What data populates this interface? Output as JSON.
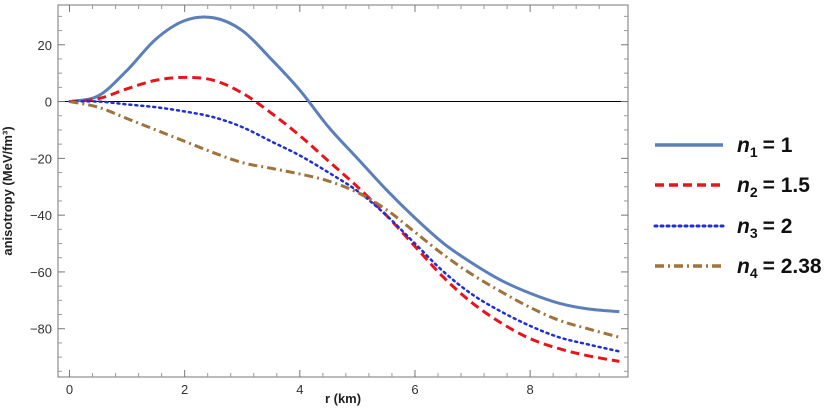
{
  "chart_data": {
    "type": "line",
    "title": "",
    "xlabel": "r (km)",
    "ylabel": "anisotropy (MeV/fm³)",
    "xlim": [
      -0.2,
      9.7
    ],
    "ylim": [
      -97,
      34
    ],
    "x_ticks": [
      0,
      2,
      4,
      6,
      8
    ],
    "y_ticks": [
      20,
      0,
      -20,
      -40,
      -60,
      -80
    ],
    "zero_line": true,
    "grid": false,
    "legend_position": "right",
    "x": [
      0,
      0.5,
      1,
      1.5,
      2,
      2.5,
      3,
      3.5,
      4,
      4.5,
      5,
      5.5,
      6,
      6.5,
      7,
      7.5,
      8,
      8.5,
      9,
      9.55
    ],
    "series": [
      {
        "name": "n1 = 1",
        "legend": {
          "var": "n",
          "sub": "1",
          "value": "= 1"
        },
        "color": "#5b7fba",
        "style": "solid",
        "values": [
          0,
          2,
          11,
          22,
          28.5,
          29.5,
          25,
          15,
          4,
          -9,
          -20,
          -31,
          -41,
          -50,
          -57,
          -63,
          -67.5,
          -71,
          -73,
          -74
        ]
      },
      {
        "name": "n2 = 1.5",
        "legend": {
          "var": "n",
          "sub": "2",
          "value": "= 1.5"
        },
        "color": "#e8141b",
        "style": "dashed",
        "values": [
          0,
          1,
          4.5,
          7.5,
          8.5,
          7.5,
          3,
          -4,
          -12,
          -21,
          -30,
          -40,
          -51,
          -62,
          -71,
          -78,
          -83.5,
          -87,
          -89.5,
          -91.5
        ]
      },
      {
        "name": "n3 = 2",
        "legend": {
          "var": "n",
          "sub": "3",
          "value": "= 2"
        },
        "color": "#1f2ed8",
        "style": "dotted",
        "values": [
          0,
          0,
          -1,
          -2,
          -3.5,
          -5.5,
          -9,
          -14,
          -19,
          -25,
          -31.5,
          -40,
          -50,
          -60,
          -68,
          -74,
          -79,
          -83,
          -85.5,
          -88
        ]
      },
      {
        "name": "n4 = 2.38",
        "legend": {
          "var": "n",
          "sub": "4",
          "value": "= 2.38"
        },
        "color": "#a0723c",
        "style": "dashdot",
        "values": [
          0,
          -2,
          -6,
          -10,
          -14,
          -18,
          -21.5,
          -23.5,
          -25.5,
          -28,
          -32,
          -38,
          -46,
          -54,
          -61,
          -67,
          -72.5,
          -77,
          -80,
          -83
        ]
      }
    ]
  }
}
